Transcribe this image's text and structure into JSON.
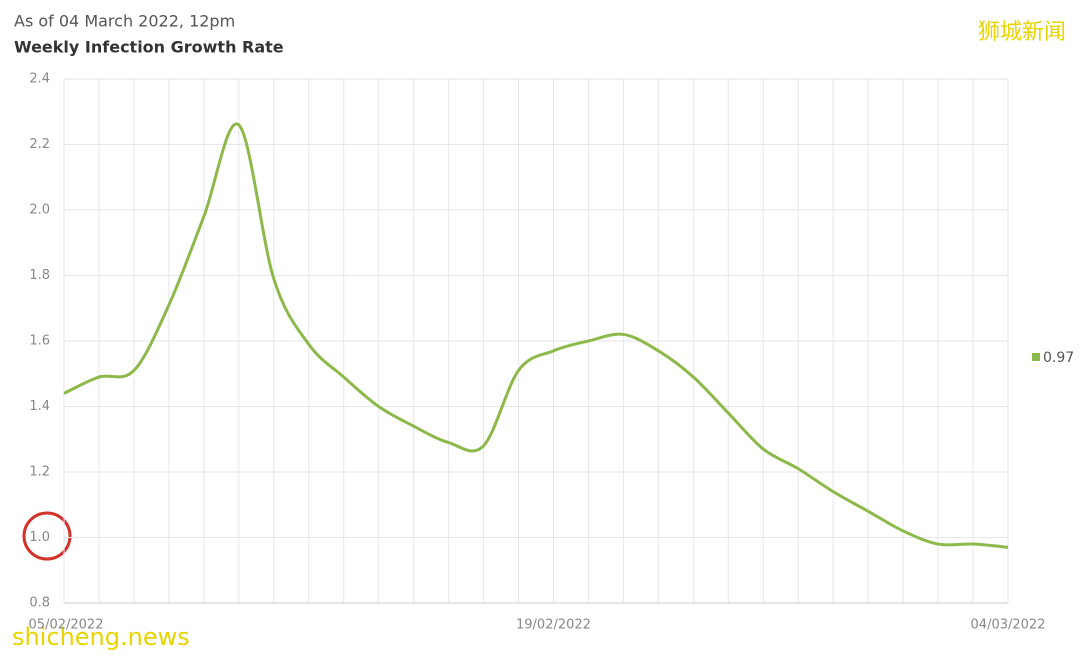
{
  "chart_data": {
    "type": "line",
    "title": "Weekly Infection Growth Rate",
    "subtitle": "As of 04 March 2022, 12pm",
    "watermarks": [
      "狮城新闻",
      "shicheng.news"
    ],
    "categories": [
      "05/02/2022",
      null,
      null,
      null,
      null,
      null,
      null,
      null,
      null,
      null,
      null,
      null,
      null,
      null,
      "19/02/2022",
      null,
      null,
      null,
      null,
      null,
      null,
      null,
      null,
      null,
      null,
      null,
      null,
      "04/03/2022"
    ],
    "series": [
      {
        "name": "0.97",
        "color": "#8db84a",
        "values": [
          1.44,
          1.49,
          1.51,
          1.71,
          1.98,
          2.26,
          1.79,
          1.59,
          1.49,
          1.4,
          1.34,
          1.29,
          1.28,
          1.51,
          1.57,
          1.6,
          1.62,
          1.57,
          1.49,
          1.38,
          1.27,
          1.21,
          1.14,
          1.08,
          1.02,
          0.98,
          0.98,
          0.97
        ]
      }
    ],
    "ylim": [
      0.8,
      2.4
    ],
    "yticks": [
      0.8,
      {
        "value": 1.0,
        "label": "1.0"
      },
      1.2,
      1.4,
      1.6,
      1.8,
      {
        "value": 2.0,
        "label": "2.0"
      },
      2.2,
      2.4
    ],
    "grid": true,
    "legend": "right"
  }
}
